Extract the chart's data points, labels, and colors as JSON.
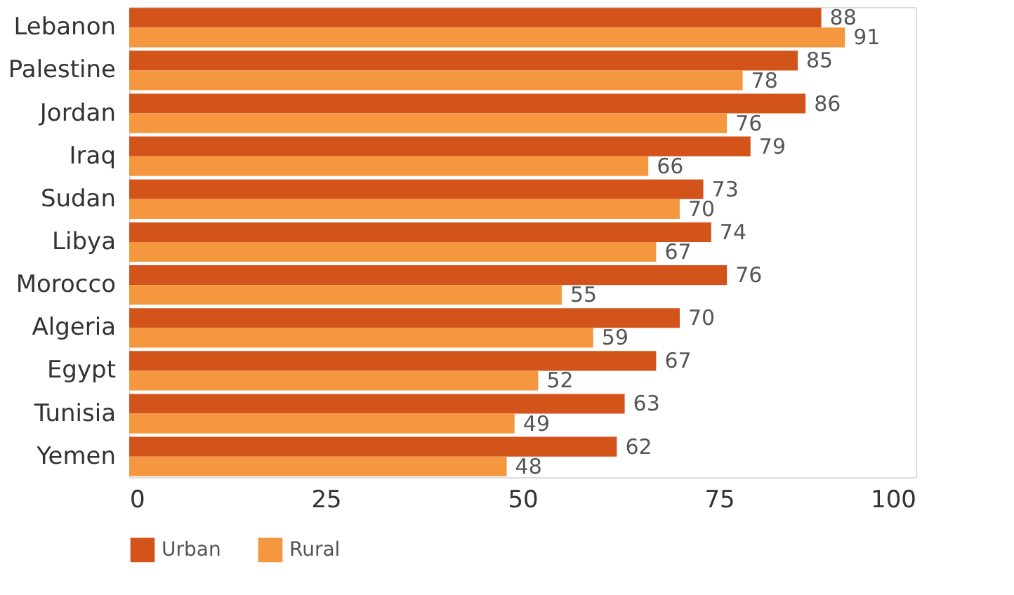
{
  "chart_data": {
    "type": "bar",
    "orientation": "horizontal",
    "categories": [
      "Lebanon",
      "Palestine",
      "Jordan",
      "Iraq",
      "Sudan",
      "Libya",
      "Morocco",
      "Algeria",
      "Egypt",
      "Tunisia",
      "Yemen"
    ],
    "series": [
      {
        "name": "Urban",
        "color": "#d2541a",
        "values": [
          88,
          85,
          86,
          79,
          73,
          74,
          76,
          70,
          67,
          63,
          62
        ]
      },
      {
        "name": "Rural",
        "color": "#f4973e",
        "values": [
          91,
          78,
          76,
          66,
          70,
          67,
          55,
          59,
          52,
          49,
          48
        ]
      }
    ],
    "xlim": [
      0,
      100
    ],
    "xticks": [
      0,
      25,
      50,
      75,
      100
    ],
    "data_labels": true,
    "legend": "bottom",
    "grid": false
  }
}
